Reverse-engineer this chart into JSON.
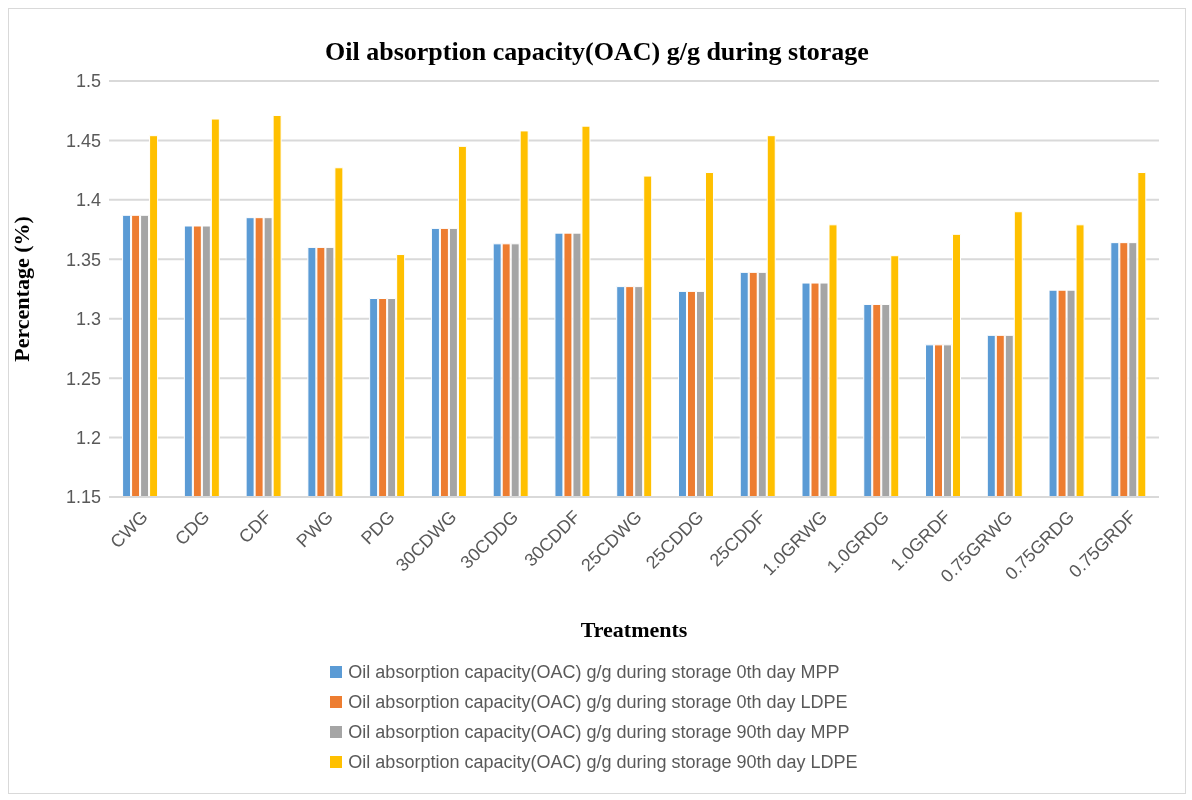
{
  "chart_data": {
    "type": "bar",
    "title": "Oil absorption capacity(OAC) g/g during storage",
    "xlabel": "Treatments",
    "ylabel": "Percentage (%)",
    "categories": [
      "CWG",
      "CDG",
      "CDF",
      "PWG",
      "PDG",
      "30CDWG",
      "30CDDG",
      "30CDDF",
      "25CDWG",
      "25CDDG",
      "25CDDF",
      "1.0GRWG",
      "1.0GRDG",
      "1.0GRDF",
      "0.75GRWG",
      "0.75GRDG",
      "0.75GRDF"
    ],
    "series": [
      {
        "name": "Oil absorption capacity(OAC) g/g during storage 0th day MPP",
        "color": "#5b9bd5",
        "values": [
          1.387,
          1.378,
          1.385,
          1.36,
          1.317,
          1.376,
          1.363,
          1.372,
          1.327,
          1.323,
          1.339,
          1.33,
          1.312,
          1.278,
          1.286,
          1.324,
          1.364
        ]
      },
      {
        "name": "Oil absorption capacity(OAC) g/g during storage 0th day LDPE",
        "color": "#ed7d31",
        "values": [
          1.387,
          1.378,
          1.385,
          1.36,
          1.317,
          1.376,
          1.363,
          1.372,
          1.327,
          1.323,
          1.339,
          1.33,
          1.312,
          1.278,
          1.286,
          1.324,
          1.364
        ]
      },
      {
        "name": "Oil absorption capacity(OAC) g/g during storage 90th day MPP",
        "color": "#a5a5a5",
        "values": [
          1.387,
          1.378,
          1.385,
          1.36,
          1.317,
          1.376,
          1.363,
          1.372,
          1.327,
          1.323,
          1.339,
          1.33,
          1.312,
          1.278,
          1.286,
          1.324,
          1.364
        ]
      },
      {
        "name": "Oil absorption capacity(OAC) g/g during storage 90th day LDPE",
        "color": "#ffc000",
        "values": [
          1.454,
          1.468,
          1.471,
          1.427,
          1.354,
          1.445,
          1.458,
          1.462,
          1.42,
          1.423,
          1.454,
          1.379,
          1.353,
          1.371,
          1.39,
          1.379,
          1.423
        ]
      }
    ],
    "ylim": [
      1.15,
      1.5
    ],
    "yticks": [
      1.15,
      1.2,
      1.25,
      1.3,
      1.35,
      1.4,
      1.45,
      1.5
    ],
    "grid": "y",
    "legend": "bottom"
  }
}
